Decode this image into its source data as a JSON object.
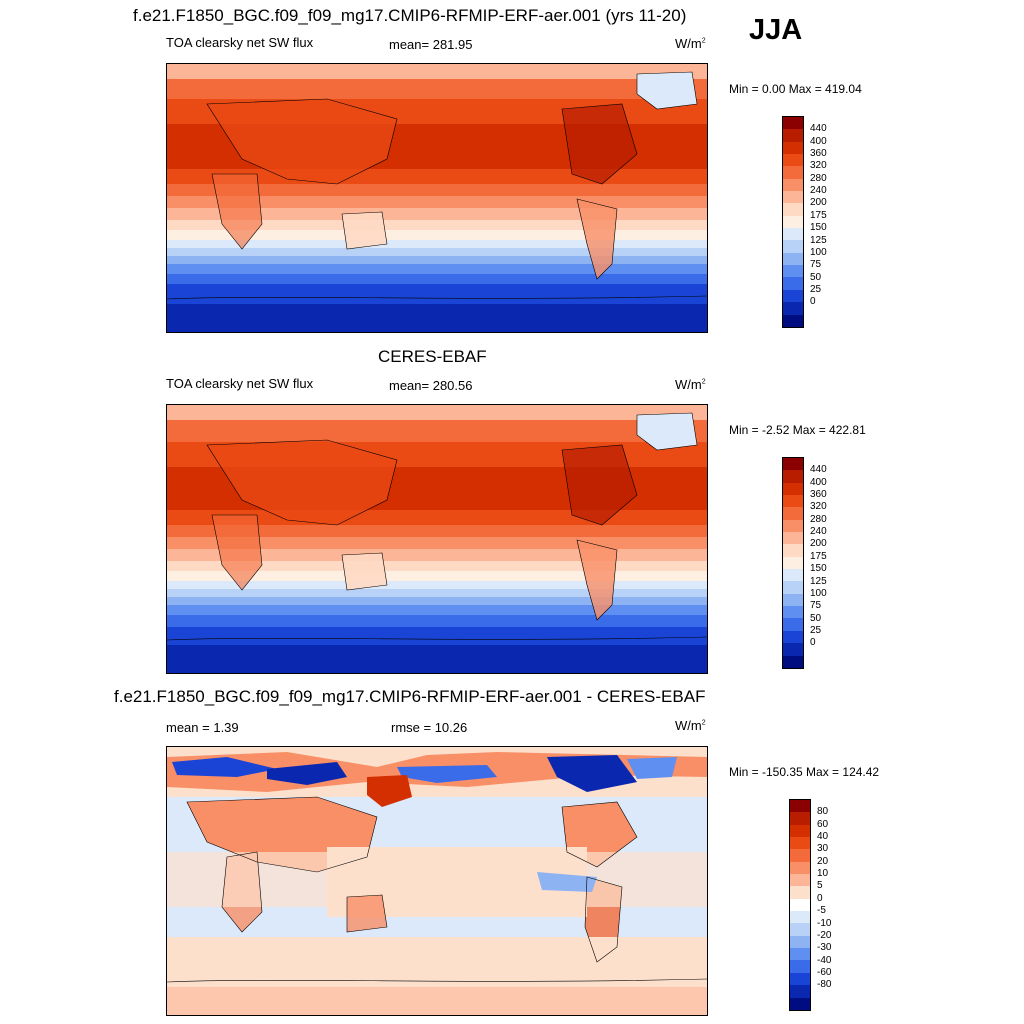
{
  "header": {
    "main_title": "f.e21.F1850_BGC.f09_f09_mg17.CMIP6-RFMIP-ERF-aer.001 (yrs 11-20)",
    "season": "JJA"
  },
  "panels": [
    {
      "title": "",
      "variable": "TOA clearsky net SW flux",
      "stat1": "mean= 281.95",
      "units": "W/m",
      "units_sup": "2",
      "minmax": "Min =   0.00 Max = 419.04",
      "colorbar": {
        "labels": [
          "440",
          "400",
          "360",
          "320",
          "280",
          "240",
          "200",
          "175",
          "150",
          "125",
          "100",
          "75",
          "50",
          "25",
          "0"
        ],
        "colors": [
          "#8b0000",
          "#b81d00",
          "#d42f00",
          "#ea4a14",
          "#f36b3a",
          "#f98f66",
          "#fcb596",
          "#fed9c4",
          "#fdf0e3",
          "#dbe9fb",
          "#b7d1f7",
          "#8db3f2",
          "#5f8ff0",
          "#3a6cea",
          "#1a44d6",
          "#0a27b0",
          "#000d80"
        ]
      }
    },
    {
      "title": "CERES-EBAF",
      "variable": "TOA clearsky net SW flux",
      "stat1": "mean= 280.56",
      "units": "W/m",
      "units_sup": "2",
      "minmax": "Min =  -2.52 Max = 422.81",
      "colorbar": {
        "labels": [
          "440",
          "400",
          "360",
          "320",
          "280",
          "240",
          "200",
          "175",
          "150",
          "125",
          "100",
          "75",
          "50",
          "25",
          "0"
        ],
        "colors": [
          "#8b0000",
          "#b81d00",
          "#d42f00",
          "#ea4a14",
          "#f36b3a",
          "#f98f66",
          "#fcb596",
          "#fed9c4",
          "#fdf0e3",
          "#dbe9fb",
          "#b7d1f7",
          "#8db3f2",
          "#5f8ff0",
          "#3a6cea",
          "#1a44d6",
          "#0a27b0",
          "#000d80"
        ]
      }
    },
    {
      "title": "f.e21.F1850_BGC.f09_f09_mg17.CMIP6-RFMIP-ERF-aer.001 - CERES-EBAF",
      "variable": "",
      "stat1": "mean =   1.39",
      "stat2": "rmse =  10.26",
      "units": "W/m",
      "units_sup": "2",
      "minmax": "Min = -150.35 Max = 124.42",
      "colorbar": {
        "labels": [
          "80",
          "60",
          "40",
          "30",
          "20",
          "10",
          "5",
          "0",
          "-5",
          "-10",
          "-20",
          "-30",
          "-40",
          "-60",
          "-80"
        ],
        "colors": [
          "#8b0000",
          "#b81d00",
          "#d42f00",
          "#ea4a14",
          "#f36b3a",
          "#f98f66",
          "#fcb596",
          "#fde0cc",
          "#ffffff",
          "#dbe9fb",
          "#b7d1f7",
          "#8db3f2",
          "#5f8ff0",
          "#3a6cea",
          "#1a44d6",
          "#0a27b0",
          "#000d80"
        ]
      }
    }
  ]
}
